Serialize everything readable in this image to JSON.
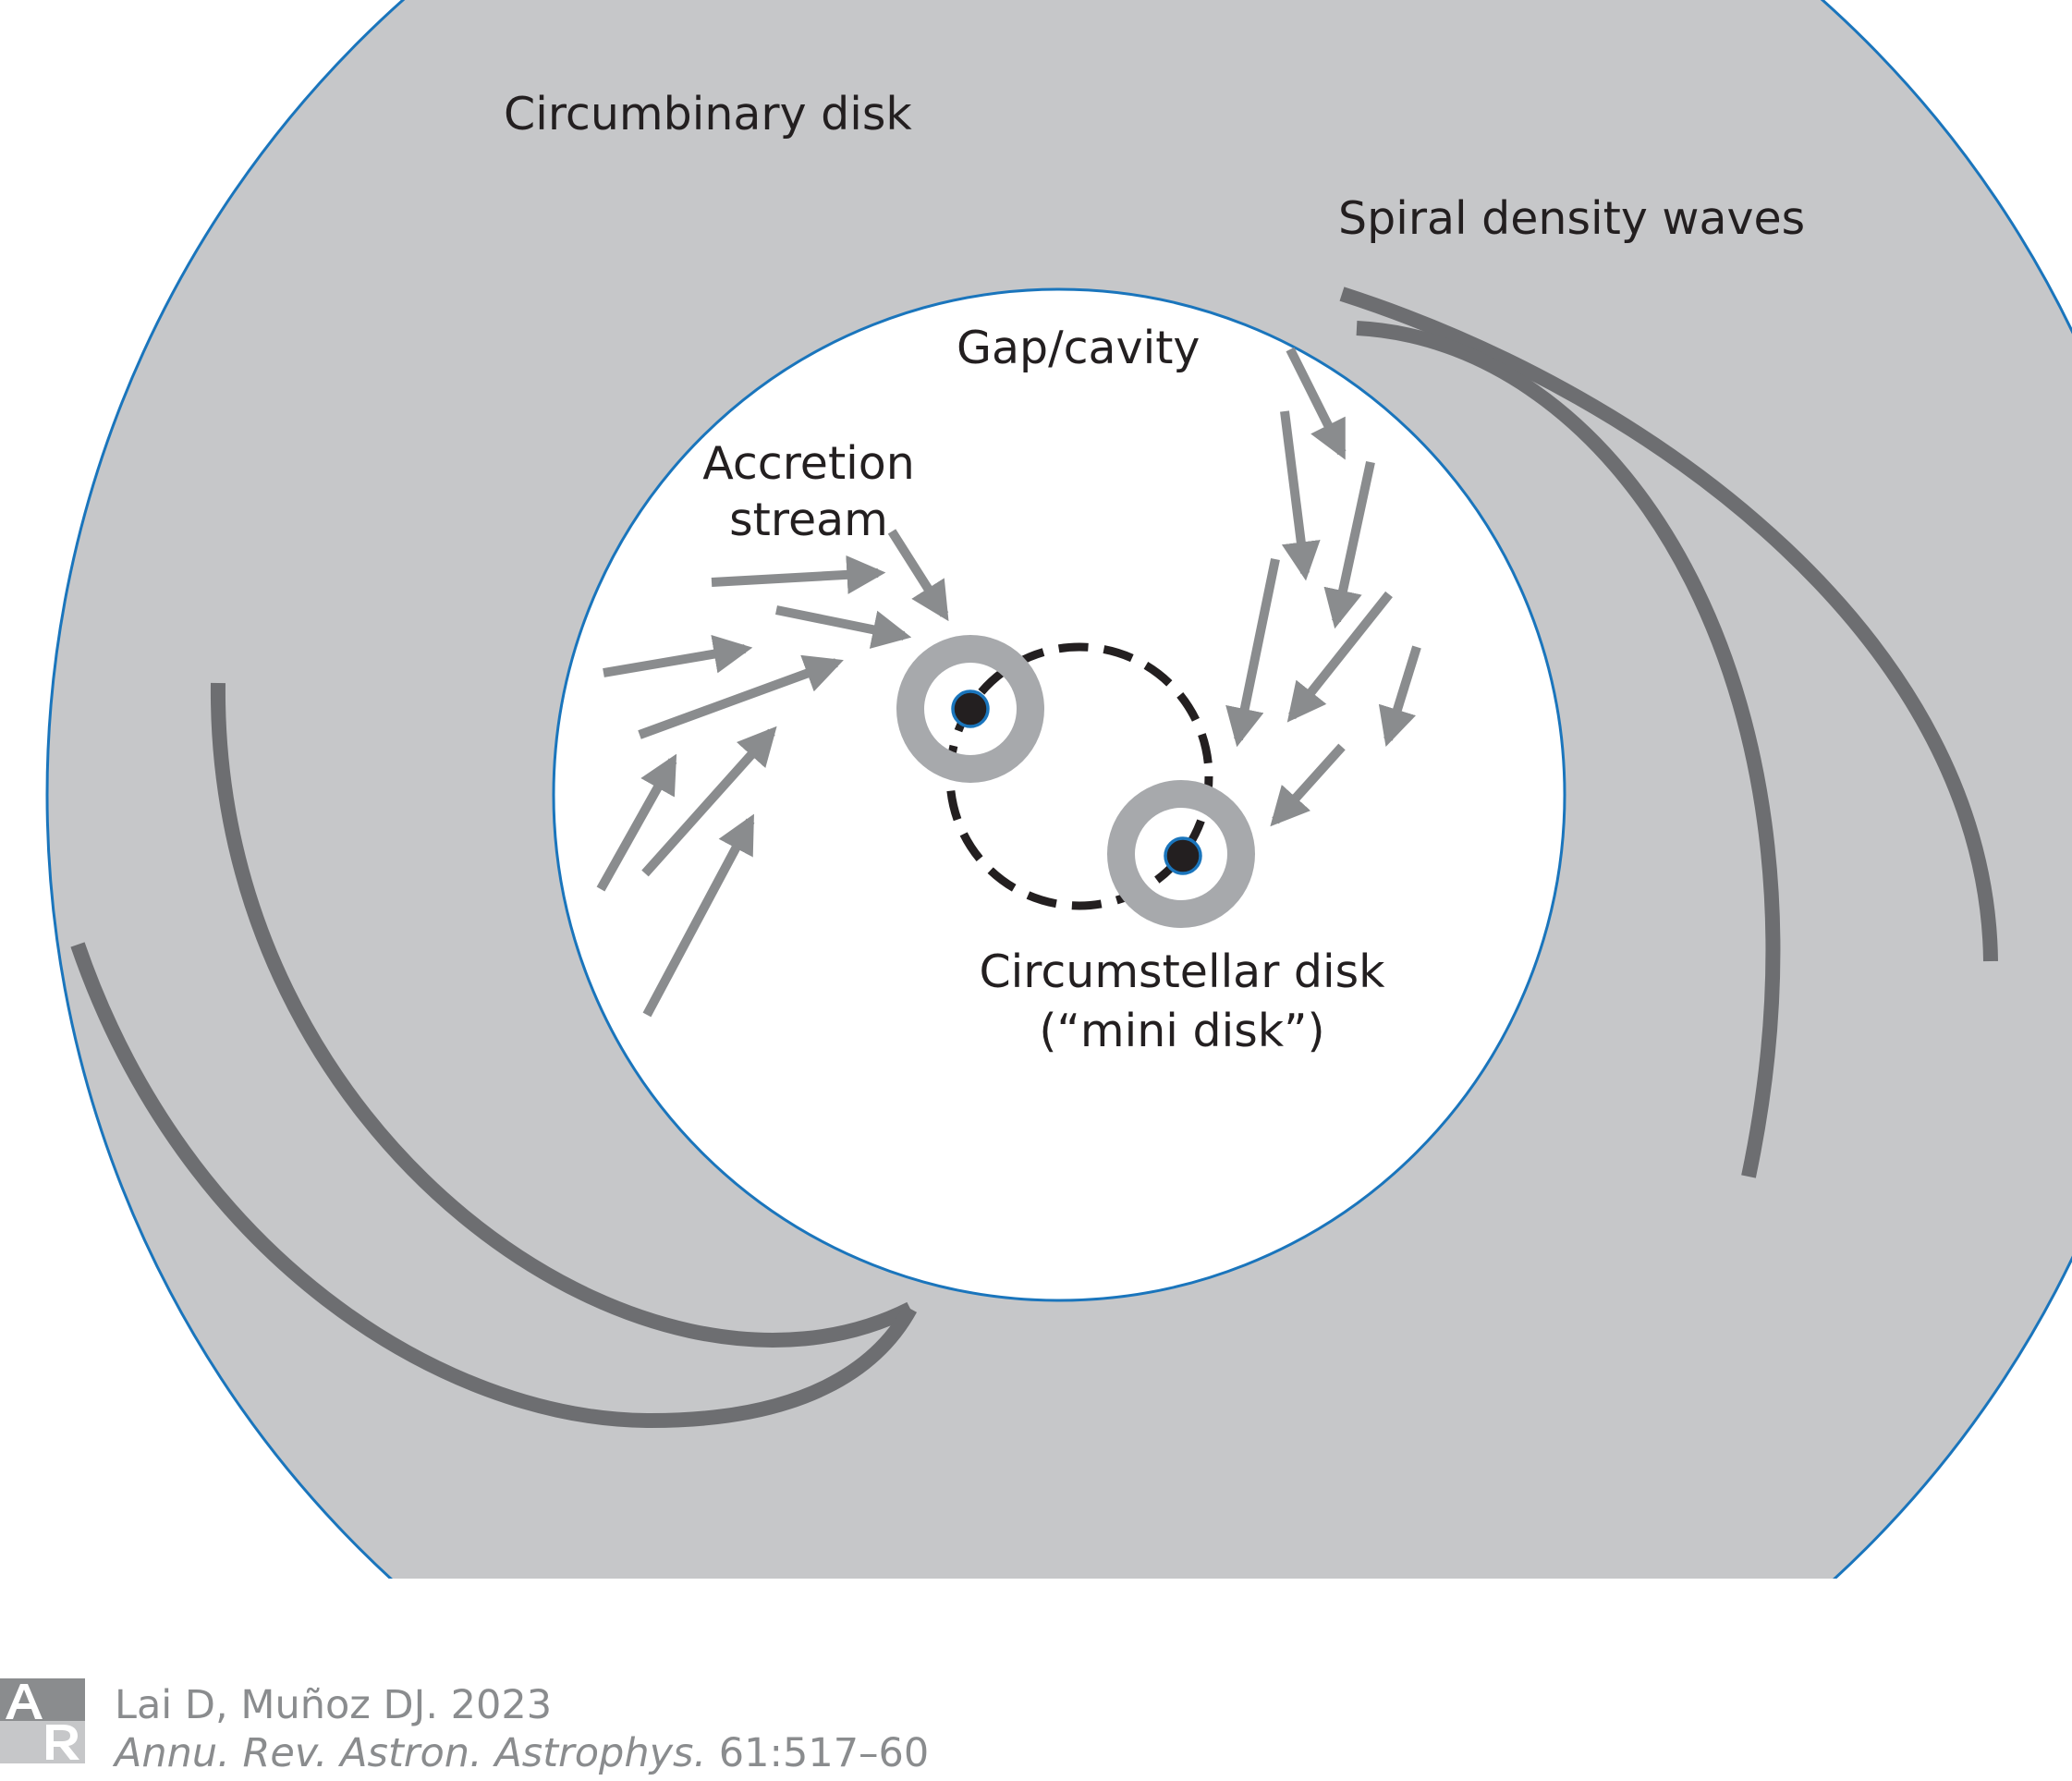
{
  "labels": {
    "circumbinary": "Circumbinary disk",
    "spiral": "Spiral density waves",
    "gap": "Gap/cavity",
    "accretion_line1": "Accretion",
    "accretion_line2": "stream",
    "circumstellar_line1": "Circumstellar disk",
    "circumstellar_line2": "(“mini disk”)"
  },
  "citation": {
    "authors_year": "Lai D, Muñoz DJ. 2023",
    "journal": "Annu. Rev. Astron. Astrophys.",
    "volume_pages": "61:517–60",
    "logo_text": "AR"
  },
  "colors": {
    "outer_disk": "#c6c7c9",
    "disk_edge": "#1a75bc",
    "spiral_arm": "#6d6e71",
    "arrow": "#8a8c8e",
    "mini_disk": "#a7a9ac",
    "star": "#231f20",
    "text": "#231f20",
    "citation_text": "#8a8c8e"
  }
}
